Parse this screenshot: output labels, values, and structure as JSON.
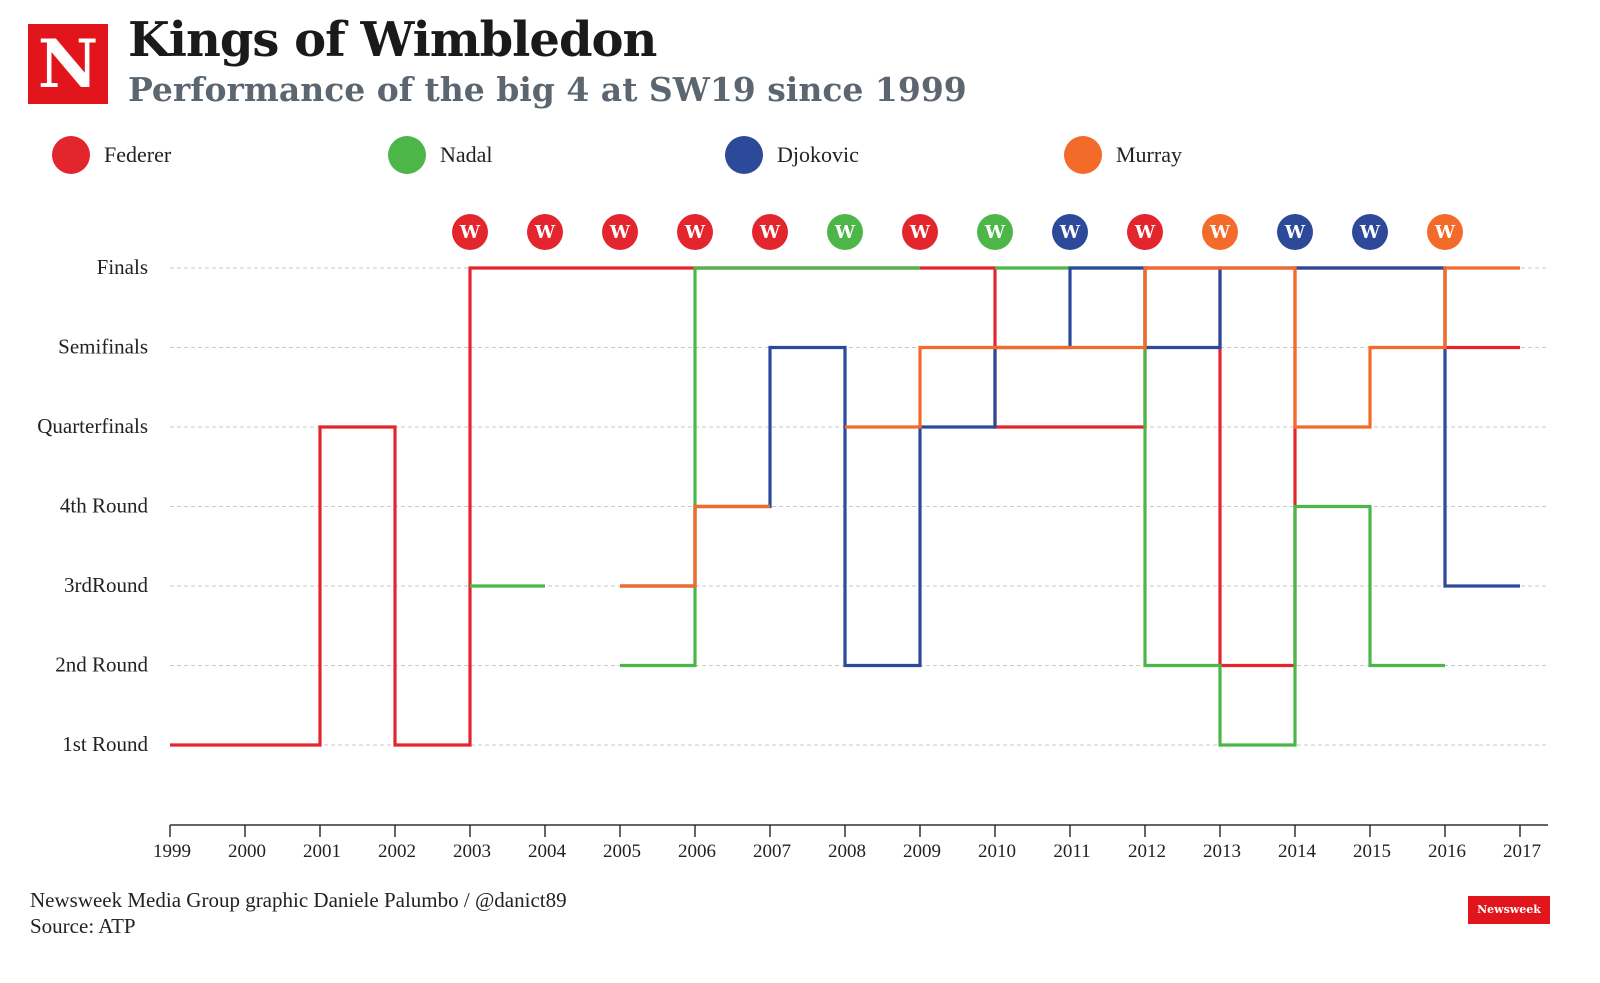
{
  "header": {
    "logo_letter": "N",
    "title": "Kings of Wimbledon",
    "subtitle": "Performance of the big 4 at SW19 since 1999"
  },
  "legend": [
    {
      "name": "Federer",
      "color": "#e3262e"
    },
    {
      "name": "Nadal",
      "color": "#4cb748"
    },
    {
      "name": "Djokovic",
      "color": "#2d4a9a"
    },
    {
      "name": "Murray",
      "color": "#f26b2a"
    }
  ],
  "chart_data": {
    "type": "line",
    "step": true,
    "x": [
      1999,
      2000,
      2001,
      2002,
      2003,
      2004,
      2005,
      2006,
      2007,
      2008,
      2009,
      2010,
      2011,
      2012,
      2013,
      2014,
      2015,
      2016,
      2017
    ],
    "x_tick_labels": [
      "1999",
      "2000",
      "2001",
      "2002",
      "2003",
      "2004",
      "2005",
      "2006",
      "2007",
      "2008",
      "2009",
      "2010",
      "2011",
      "2012",
      "2013",
      "2014",
      "2015",
      "2016",
      "2017"
    ],
    "y_levels": [
      "1st Round",
      "2nd Round",
      "3rdRound",
      "4th Round",
      "Quarterfinals",
      "Semifinals",
      "Finals"
    ],
    "y_range": [
      1,
      7
    ],
    "grid": "horizontal dashed",
    "series": [
      {
        "name": "Federer",
        "color": "#e3262e",
        "segments": [
          [
            [
              1999,
              1
            ],
            [
              2000,
              1
            ],
            [
              2001,
              5
            ],
            [
              2002,
              1
            ],
            [
              2003,
              7
            ],
            [
              2004,
              7
            ],
            [
              2005,
              7
            ],
            [
              2006,
              7
            ],
            [
              2007,
              7
            ],
            [
              2008,
              7
            ],
            [
              2009,
              7
            ],
            [
              2010,
              5
            ],
            [
              2011,
              5
            ],
            [
              2012,
              7
            ],
            [
              2013,
              2
            ],
            [
              2014,
              7
            ],
            [
              2015,
              7
            ],
            [
              2016,
              6
            ]
          ]
        ]
      },
      {
        "name": "Nadal",
        "color": "#4cb748",
        "segments": [
          [
            [
              2003,
              3
            ]
          ],
          [
            [
              2005,
              2
            ],
            [
              2006,
              7
            ],
            [
              2007,
              7
            ],
            [
              2008,
              7
            ]
          ],
          [
            [
              2010,
              7
            ],
            [
              2011,
              7
            ],
            [
              2012,
              2
            ],
            [
              2013,
              1
            ],
            [
              2014,
              4
            ],
            [
              2015,
              2
            ]
          ]
        ]
      },
      {
        "name": "Djokovic",
        "color": "#2d4a9a",
        "segments": [
          [
            [
              2005,
              3
            ],
            [
              2006,
              4
            ],
            [
              2007,
              6
            ],
            [
              2008,
              2
            ],
            [
              2009,
              5
            ],
            [
              2010,
              6
            ],
            [
              2011,
              7
            ],
            [
              2012,
              6
            ],
            [
              2013,
              7
            ],
            [
              2014,
              7
            ],
            [
              2015,
              7
            ],
            [
              2016,
              3
            ]
          ]
        ]
      },
      {
        "name": "Murray",
        "color": "#f26b2a",
        "segments": [
          [
            [
              2005,
              3
            ],
            [
              2006,
              4
            ]
          ],
          [
            [
              2008,
              5
            ],
            [
              2009,
              6
            ],
            [
              2010,
              6
            ],
            [
              2011,
              6
            ],
            [
              2012,
              7
            ],
            [
              2013,
              7
            ],
            [
              2014,
              5
            ],
            [
              2015,
              6
            ],
            [
              2016,
              7
            ]
          ]
        ]
      }
    ],
    "winners": [
      {
        "year": 2003,
        "player": "Federer"
      },
      {
        "year": 2004,
        "player": "Federer"
      },
      {
        "year": 2005,
        "player": "Federer"
      },
      {
        "year": 2006,
        "player": "Federer"
      },
      {
        "year": 2007,
        "player": "Federer"
      },
      {
        "year": 2008,
        "player": "Nadal"
      },
      {
        "year": 2009,
        "player": "Federer"
      },
      {
        "year": 2010,
        "player": "Nadal"
      },
      {
        "year": 2011,
        "player": "Djokovic"
      },
      {
        "year": 2012,
        "player": "Federer"
      },
      {
        "year": 2013,
        "player": "Murray"
      },
      {
        "year": 2014,
        "player": "Djokovic"
      },
      {
        "year": 2015,
        "player": "Djokovic"
      },
      {
        "year": 2016,
        "player": "Murray"
      }
    ],
    "winner_label": "W"
  },
  "footer": {
    "credit": "Newsweek Media Group graphic Daniele Palumbo / @danict89",
    "source": "Source: ATP",
    "badge": "Newsweek"
  }
}
